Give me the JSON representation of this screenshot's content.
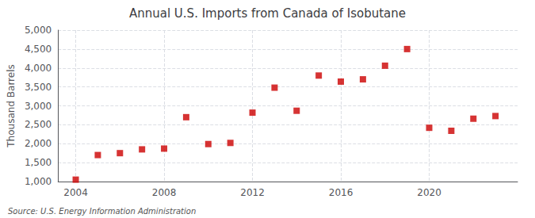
{
  "chart_data": {
    "type": "scatter",
    "title": "Annual U.S. Imports from Canada of Isobutane",
    "ylabel": "Thousand Barrels",
    "annotations": [
      "Source: U.S. Energy Information Administration"
    ],
    "x": [
      2004,
      2005,
      2006,
      2007,
      2008,
      2009,
      2010,
      2011,
      2012,
      2013,
      2014,
      2015,
      2016,
      2017,
      2018,
      2019,
      2020,
      2021,
      2022,
      2023
    ],
    "values": [
      1050,
      1700,
      1750,
      1850,
      1870,
      2700,
      1990,
      2020,
      2820,
      3480,
      2870,
      3800,
      3640,
      3700,
      4060,
      4500,
      2420,
      2340,
      2660,
      2730
    ],
    "color": "#cc0000",
    "marker": "square",
    "xlim": [
      2003.2,
      2024.0
    ],
    "xticks": [
      2004,
      2008,
      2012,
      2016,
      2020
    ],
    "ylim": [
      1000,
      5000
    ],
    "yticks": [
      {
        "value": 1000,
        "label": "1,000"
      },
      {
        "value": 1500,
        "label": "1,500"
      },
      {
        "value": 2000,
        "label": "2,000"
      },
      {
        "value": 2500,
        "label": "2,500"
      },
      {
        "value": 3000,
        "label": "3,000"
      },
      {
        "value": 3500,
        "label": "3,500"
      },
      {
        "value": 4000,
        "label": "4,000"
      },
      {
        "value": 4500,
        "label": "4,500"
      },
      {
        "value": 5000,
        "label": "5,000"
      }
    ],
    "grid": true
  }
}
